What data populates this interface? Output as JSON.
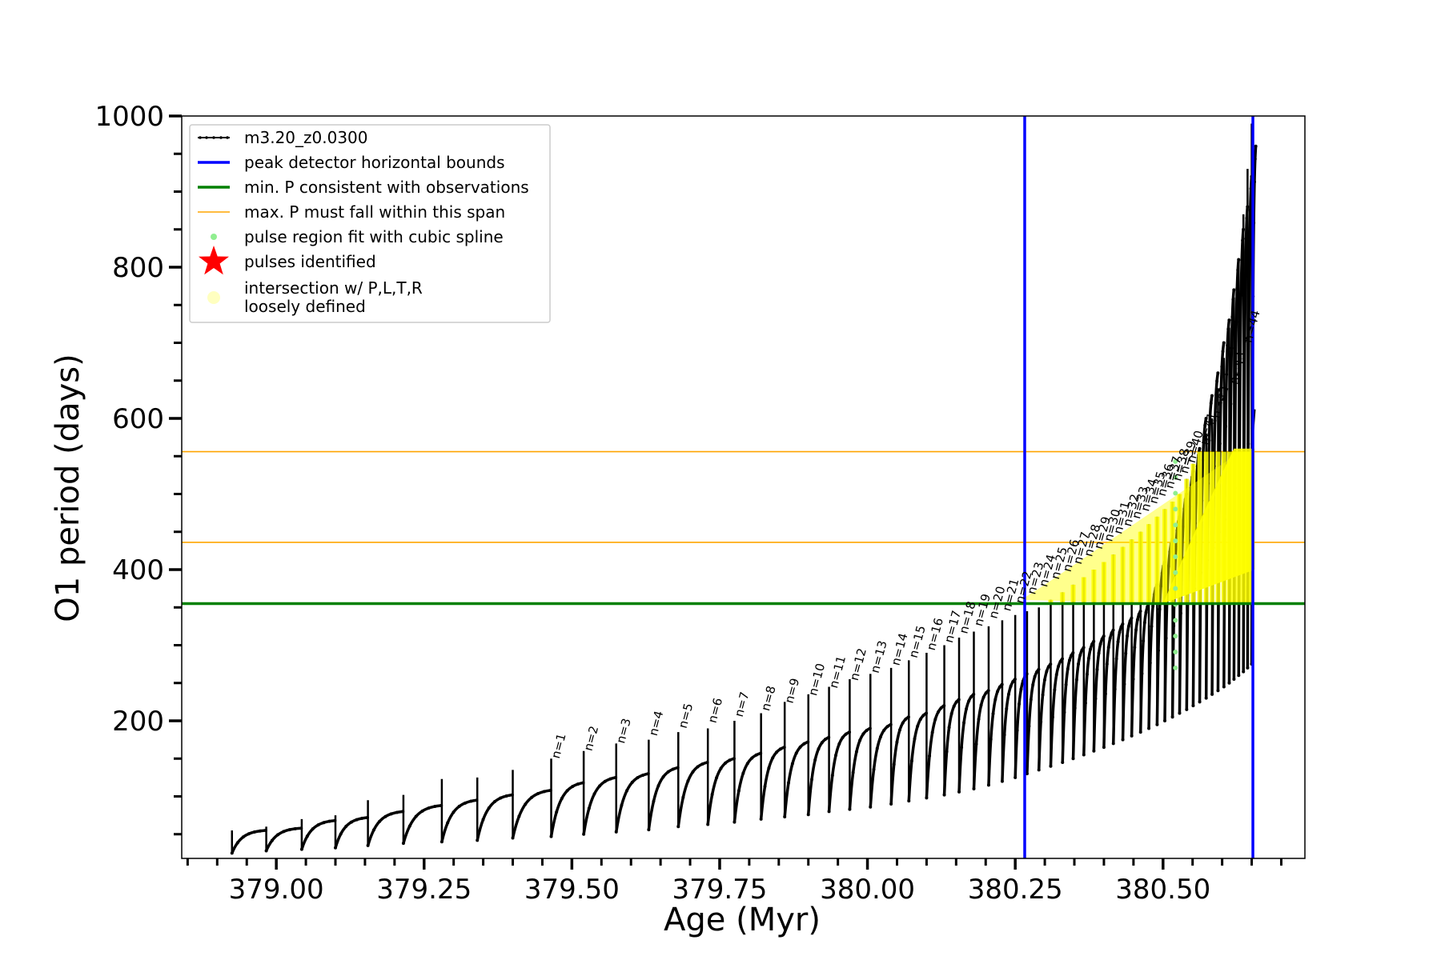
{
  "chart_data": {
    "type": "line",
    "title": "",
    "xlabel": "Age (Myr)",
    "ylabel": "O1 period (days)",
    "xlim": [
      378.84,
      380.74
    ],
    "ylim": [
      18,
      1000
    ],
    "x_major_ticks": [
      379.0,
      379.25,
      379.5,
      379.75,
      380.0,
      380.25,
      380.5
    ],
    "x_tick_labels": [
      "379.00",
      "379.25",
      "379.50",
      "379.75",
      "380.00",
      "380.25",
      "380.50"
    ],
    "y_major_ticks": [
      200,
      400,
      600,
      800,
      1000
    ],
    "y_tick_labels": [
      "200",
      "400",
      "600",
      "800",
      "1000"
    ],
    "grid": false,
    "legend_position": "top-left",
    "legend": [
      {
        "label": "m3.20_z0.0300",
        "style": "line-with-markers",
        "color": "#000000"
      },
      {
        "label": "peak detector horizontal bounds",
        "style": "line",
        "color": "#0000ff"
      },
      {
        "label": "min. P consistent with observations",
        "style": "line",
        "color": "#008000"
      },
      {
        "label": "max. P must fall within this span",
        "style": "thin-line",
        "color": "#ffa500"
      },
      {
        "label": "pulse region fit with cubic spline",
        "style": "dot",
        "color": "#90ee90"
      },
      {
        "label": "pulses identified",
        "style": "star",
        "color": "#ff0000"
      },
      {
        "label": "intersection w/ P,L,T,R\nloosely defined",
        "style": "circle",
        "color": "#ffffc0"
      }
    ],
    "vertical_bounds_x": [
      380.266,
      380.652
    ],
    "min_period_line_y": 355,
    "max_period_span_y": [
      436,
      556
    ],
    "pulses": {
      "ages": [
        378.925,
        378.983,
        379.043,
        379.1,
        379.155,
        379.215,
        379.28,
        379.34,
        379.4,
        379.465,
        379.52,
        379.575,
        379.63,
        379.68,
        379.73,
        379.775,
        379.82,
        379.86,
        379.9,
        379.935,
        379.97,
        380.005,
        380.04,
        380.07,
        380.1,
        380.13,
        380.155,
        380.18,
        380.205,
        380.228,
        380.25,
        380.27,
        380.29,
        380.31,
        380.33,
        380.348,
        380.366,
        380.383,
        380.4,
        380.416,
        380.432,
        380.447,
        380.462,
        380.476,
        380.49,
        380.503,
        380.516,
        380.528,
        380.54,
        380.551,
        380.562,
        380.573,
        380.583,
        380.593,
        380.603,
        380.612,
        380.62,
        380.628,
        380.636,
        380.643,
        380.65
      ],
      "peak_periods": [
        55,
        58,
        68,
        72,
        80,
        88,
        95,
        102,
        108,
        118,
        125,
        130,
        138,
        145,
        150,
        157,
        165,
        172,
        178,
        185,
        190,
        195,
        205,
        210,
        220,
        228,
        235,
        240,
        248,
        255,
        262,
        268,
        275,
        282,
        290,
        297,
        305,
        312,
        320,
        328,
        336,
        345,
        355,
        380,
        410,
        440,
        470,
        500,
        530,
        560,
        600,
        630,
        660,
        700,
        730,
        770,
        810,
        850,
        880,
        920,
        960
      ],
      "spike_periods": [
        55,
        60,
        70,
        75,
        95,
        102,
        123,
        125,
        135,
        150,
        160,
        170,
        175,
        185,
        190,
        200,
        210,
        225,
        235,
        245,
        255,
        262,
        270,
        280,
        290,
        300,
        310,
        318,
        325,
        333,
        340,
        345,
        350,
        360,
        370,
        380,
        390,
        400,
        410,
        420,
        430,
        440,
        450,
        460,
        470,
        480,
        490,
        500,
        520,
        540,
        560,
        580,
        600,
        640,
        680,
        720,
        760,
        810,
        870,
        930,
        990
      ],
      "trough_periods": [
        25,
        28,
        30,
        32,
        35,
        38,
        40,
        42,
        45,
        47,
        50,
        53,
        56,
        60,
        63,
        66,
        70,
        73,
        76,
        80,
        83,
        86,
        90,
        94,
        98,
        102,
        106,
        110,
        115,
        120,
        125,
        130,
        135,
        140,
        145,
        150,
        155,
        160,
        165,
        170,
        175,
        180,
        185,
        190,
        195,
        200,
        205,
        210,
        215,
        220,
        225,
        230,
        235,
        240,
        245,
        250,
        255,
        260,
        265,
        270,
        275
      ]
    },
    "pulse_labels": [
      "n=1",
      "n=2",
      "n=3",
      "n=4",
      "n=5",
      "n=6",
      "n=7",
      "n=8",
      "n=9",
      "n=10",
      "n=11",
      "n=12",
      "n=13",
      "n=14",
      "n=15",
      "n=16",
      "n=17",
      "n=18",
      "n=19",
      "n=20",
      "n=21",
      "n=22",
      "n=23",
      "n=24",
      "n=25",
      "n=26",
      "n=27",
      "n=28",
      "n=29",
      "n=30",
      "n=31",
      "n=32",
      "n=33",
      "n=34",
      "n=35",
      "n=36",
      "n=37",
      "n=38",
      "n=39",
      "n=40",
      "n=41",
      "n=42",
      "n=43",
      "n=44"
    ],
    "pulse_label_ages": [
      379.465,
      379.52,
      379.575,
      379.63,
      379.68,
      379.73,
      379.775,
      379.82,
      379.86,
      379.9,
      379.935,
      379.97,
      380.005,
      380.04,
      380.07,
      380.1,
      380.13,
      380.155,
      380.18,
      380.205,
      380.228,
      380.25,
      380.27,
      380.29,
      380.31,
      380.33,
      380.348,
      380.366,
      380.383,
      380.4,
      380.416,
      380.432,
      380.447,
      380.462,
      380.476,
      380.49,
      380.503,
      380.516,
      380.528,
      380.54,
      380.562,
      380.583,
      380.612,
      380.636
    ],
    "pulse_label_periods": [
      145,
      155,
      165,
      175,
      185,
      192,
      200,
      208,
      218,
      228,
      238,
      248,
      258,
      268,
      278,
      288,
      298,
      310,
      320,
      330,
      340,
      350,
      362,
      372,
      382,
      392,
      402,
      412,
      422,
      432,
      442,
      452,
      462,
      472,
      482,
      492,
      502,
      512,
      522,
      536,
      560,
      595,
      640,
      695
    ]
  }
}
